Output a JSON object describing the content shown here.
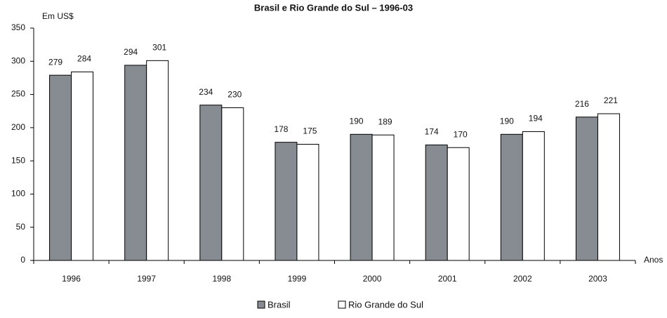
{
  "chart_data": {
    "type": "bar",
    "title": "Brasil e Rio Grande do Sul – 1996-03",
    "y_label": "Em US$",
    "x_label": "Anos",
    "categories": [
      "1996",
      "1997",
      "1998",
      "1999",
      "2000",
      "2001",
      "2002",
      "2003"
    ],
    "series": [
      {
        "name": "Brasil",
        "color": "#878c92",
        "values": [
          279,
          294,
          234,
          178,
          190,
          174,
          190,
          216
        ]
      },
      {
        "name": "Rio Grande do Sul",
        "color": "#ffffff",
        "values": [
          284,
          301,
          230,
          175,
          189,
          170,
          194,
          221
        ]
      }
    ],
    "ylim": [
      0,
      350
    ],
    "yticks": [
      0,
      50,
      100,
      150,
      200,
      250,
      300,
      350
    ],
    "grid": false
  }
}
